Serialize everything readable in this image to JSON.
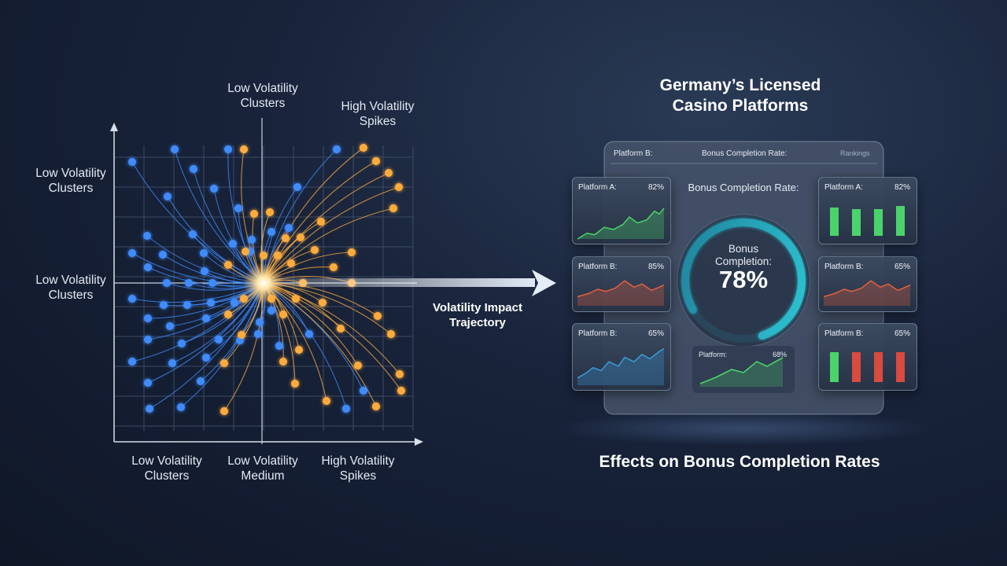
{
  "scatter_panel": {
    "top_labels": [
      "Low Volatility Clusters",
      "High Volatility Spikes"
    ],
    "left_labels": [
      "Low Volatility Clusters",
      "Low Volatility Clusters"
    ],
    "bottom_labels": [
      "Low Volatility Clusters",
      "Low Volatility Medium",
      "High Volatility Spikes"
    ]
  },
  "arrow_label": "Volatility Impact Trajectory",
  "dashboard": {
    "title": "Germany’s Licensed Casino Platforms",
    "header": {
      "platform": "Platform B:",
      "metric": "Bonus Completion Rate:",
      "menu": "Rankings"
    },
    "gauge": {
      "label": "Bonus Completion Rate:",
      "inner_label": "Bonus Completion:",
      "value": "78%"
    },
    "left_cards": [
      {
        "name": "Platform A:",
        "value": "82%"
      },
      {
        "name": "Platform B:",
        "value": "85%"
      },
      {
        "name": "Platform B:",
        "value": "65%"
      }
    ],
    "right_cards": [
      {
        "name": "Platform A:",
        "value": "82%"
      },
      {
        "name": "Platform B:",
        "value": "65%"
      },
      {
        "name": "Platform B:",
        "value": "65%"
      }
    ],
    "bottom_card": {
      "name": "Platform:",
      "value": "68%"
    }
  },
  "footer": "Effects on Bonus Completion Rates"
}
